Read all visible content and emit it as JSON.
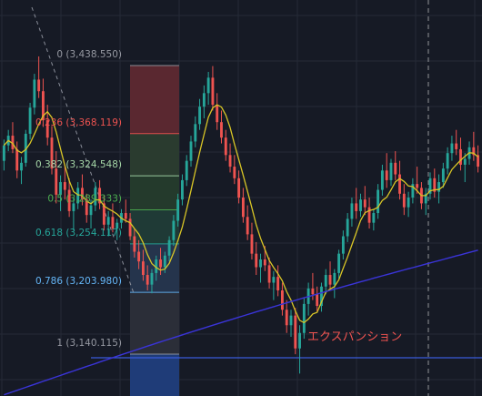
{
  "chart_data": {
    "type": "candlestick",
    "colors": {
      "background": "#161a25",
      "grid": "#252a36",
      "up": "#26a69a",
      "down": "#ef5350",
      "ma_short": "#d8c526",
      "ma_long": "#3a34d8",
      "horizontal_line": "#3b5bdb",
      "crosshair": "#c8c8c8"
    },
    "y_range": [
      3100,
      3460
    ],
    "fibonacci": {
      "levels": [
        {
          "ratio": "0",
          "price": "3,438.550",
          "value": 3438.55,
          "label_color": "#9598a1",
          "fill": ""
        },
        {
          "ratio": "0.236",
          "price": "3,368.119",
          "value": 3368.119,
          "label_color": "#ef5350",
          "fill": "#5a2830"
        },
        {
          "ratio": "0.382",
          "price": "3,324.548",
          "value": 3324.548,
          "label_color": "#a5d6a7",
          "fill": "#2a3b2f"
        },
        {
          "ratio": "0.5",
          "price": "3,289.333",
          "value": 3289.333,
          "label_color": "#4caf50",
          "fill": "#243a2c"
        },
        {
          "ratio": "0.618",
          "price": "3,254.117",
          "value": 3254.117,
          "label_color": "#26a69a",
          "fill": "#1f3a36"
        },
        {
          "ratio": "0.786",
          "price": "3,203.980",
          "value": 3203.98,
          "label_color": "#64b5f6",
          "fill": "#25344c"
        },
        {
          "ratio": "1",
          "price": "3,140.115",
          "value": 3140.115,
          "label_color": "#9598a1",
          "fill": "#2b2e38"
        }
      ],
      "extension_fill": "#1f3c78"
    },
    "annotation": "エクスパンション",
    "annotation_color": "#ef5350",
    "candles": [
      [
        3340,
        3362,
        3330,
        3356
      ],
      [
        3356,
        3372,
        3350,
        3366
      ],
      [
        3366,
        3380,
        3348,
        3352
      ],
      [
        3352,
        3360,
        3322,
        3330
      ],
      [
        3330,
        3344,
        3316,
        3338
      ],
      [
        3338,
        3372,
        3334,
        3368
      ],
      [
        3368,
        3400,
        3362,
        3395
      ],
      [
        3395,
        3430,
        3388,
        3424
      ],
      [
        3424,
        3448,
        3405,
        3412
      ],
      [
        3412,
        3425,
        3375,
        3382
      ],
      [
        3382,
        3398,
        3356,
        3364
      ],
      [
        3364,
        3376,
        3326,
        3332
      ],
      [
        3332,
        3350,
        3296,
        3305
      ],
      [
        3305,
        3325,
        3288,
        3318
      ],
      [
        3318,
        3336,
        3300,
        3310
      ],
      [
        3310,
        3322,
        3282,
        3288
      ],
      [
        3288,
        3302,
        3268,
        3296
      ],
      [
        3296,
        3318,
        3290,
        3312
      ],
      [
        3312,
        3326,
        3294,
        3300
      ],
      [
        3300,
        3306,
        3276,
        3284
      ],
      [
        3284,
        3300,
        3270,
        3294
      ],
      [
        3294,
        3318,
        3288,
        3312
      ],
      [
        3312,
        3320,
        3290,
        3296
      ],
      [
        3296,
        3304,
        3268,
        3274
      ],
      [
        3274,
        3288,
        3262,
        3282
      ],
      [
        3282,
        3296,
        3266,
        3270
      ],
      [
        3270,
        3280,
        3258,
        3276
      ],
      [
        3276,
        3290,
        3270,
        3286
      ],
      [
        3286,
        3300,
        3276,
        3280
      ],
      [
        3280,
        3286,
        3258,
        3262
      ],
      [
        3262,
        3270,
        3240,
        3246
      ],
      [
        3246,
        3258,
        3228,
        3236
      ],
      [
        3236,
        3248,
        3216,
        3222
      ],
      [
        3222,
        3232,
        3206,
        3212
      ],
      [
        3212,
        3228,
        3203,
        3224
      ],
      [
        3224,
        3242,
        3216,
        3238
      ],
      [
        3238,
        3250,
        3222,
        3230
      ],
      [
        3230,
        3246,
        3224,
        3242
      ],
      [
        3242,
        3262,
        3236,
        3258
      ],
      [
        3258,
        3284,
        3252,
        3278
      ],
      [
        3278,
        3306,
        3272,
        3300
      ],
      [
        3300,
        3326,
        3294,
        3320
      ],
      [
        3320,
        3346,
        3314,
        3340
      ],
      [
        3340,
        3366,
        3334,
        3360
      ],
      [
        3360,
        3386,
        3354,
        3378
      ],
      [
        3378,
        3404,
        3372,
        3396
      ],
      [
        3396,
        3418,
        3384,
        3410
      ],
      [
        3410,
        3432,
        3398,
        3426
      ],
      [
        3426,
        3438,
        3392,
        3398
      ],
      [
        3398,
        3410,
        3372,
        3380
      ],
      [
        3380,
        3392,
        3358,
        3364
      ],
      [
        3364,
        3372,
        3340,
        3346
      ],
      [
        3346,
        3358,
        3328,
        3334
      ],
      [
        3334,
        3346,
        3316,
        3322
      ],
      [
        3322,
        3330,
        3296,
        3302
      ],
      [
        3302,
        3312,
        3276,
        3282
      ],
      [
        3282,
        3294,
        3258,
        3264
      ],
      [
        3264,
        3276,
        3238,
        3244
      ],
      [
        3244,
        3256,
        3222,
        3230
      ],
      [
        3230,
        3244,
        3214,
        3238
      ],
      [
        3238,
        3252,
        3226,
        3232
      ],
      [
        3232,
        3240,
        3208,
        3214
      ],
      [
        3214,
        3226,
        3196,
        3220
      ],
      [
        3220,
        3232,
        3200,
        3206
      ],
      [
        3206,
        3214,
        3180,
        3186
      ],
      [
        3186,
        3196,
        3162,
        3170
      ],
      [
        3170,
        3186,
        3158,
        3180
      ],
      [
        3180,
        3188,
        3140,
        3146
      ],
      [
        3146,
        3170,
        3120,
        3162
      ],
      [
        3162,
        3198,
        3156,
        3192
      ],
      [
        3192,
        3214,
        3180,
        3208
      ],
      [
        3208,
        3224,
        3196,
        3202
      ],
      [
        3202,
        3210,
        3184,
        3190
      ],
      [
        3190,
        3214,
        3184,
        3210
      ],
      [
        3210,
        3228,
        3202,
        3222
      ],
      [
        3222,
        3236,
        3206,
        3212
      ],
      [
        3212,
        3228,
        3198,
        3224
      ],
      [
        3224,
        3248,
        3218,
        3244
      ],
      [
        3244,
        3268,
        3238,
        3262
      ],
      [
        3262,
        3286,
        3256,
        3280
      ],
      [
        3280,
        3302,
        3272,
        3296
      ],
      [
        3296,
        3312,
        3280,
        3288
      ],
      [
        3288,
        3306,
        3282,
        3300
      ],
      [
        3300,
        3314,
        3284,
        3292
      ],
      [
        3292,
        3302,
        3270,
        3276
      ],
      [
        3276,
        3290,
        3268,
        3286
      ],
      [
        3286,
        3316,
        3280,
        3310
      ],
      [
        3310,
        3336,
        3304,
        3330
      ],
      [
        3330,
        3348,
        3312,
        3320
      ],
      [
        3320,
        3342,
        3314,
        3338
      ],
      [
        3338,
        3350,
        3320,
        3326
      ],
      [
        3326,
        3340,
        3300,
        3306
      ],
      [
        3306,
        3316,
        3284,
        3292
      ],
      [
        3292,
        3308,
        3282,
        3302
      ],
      [
        3302,
        3322,
        3296,
        3316
      ],
      [
        3316,
        3334,
        3306,
        3312
      ],
      [
        3312,
        3318,
        3290,
        3296
      ],
      [
        3296,
        3312,
        3284,
        3306
      ],
      [
        3306,
        3328,
        3300,
        3322
      ],
      [
        3322,
        3332,
        3302,
        3308
      ],
      [
        3308,
        3326,
        3296,
        3318
      ],
      [
        3318,
        3338,
        3312,
        3332
      ],
      [
        3332,
        3354,
        3326,
        3348
      ],
      [
        3348,
        3366,
        3340,
        3358
      ],
      [
        3358,
        3372,
        3346,
        3352
      ],
      [
        3352,
        3364,
        3330,
        3336
      ],
      [
        3336,
        3348,
        3318,
        3342
      ],
      [
        3342,
        3360,
        3336,
        3354
      ],
      [
        3354,
        3370,
        3340,
        3346
      ],
      [
        3346,
        3356,
        3328,
        3334
      ]
    ]
  }
}
